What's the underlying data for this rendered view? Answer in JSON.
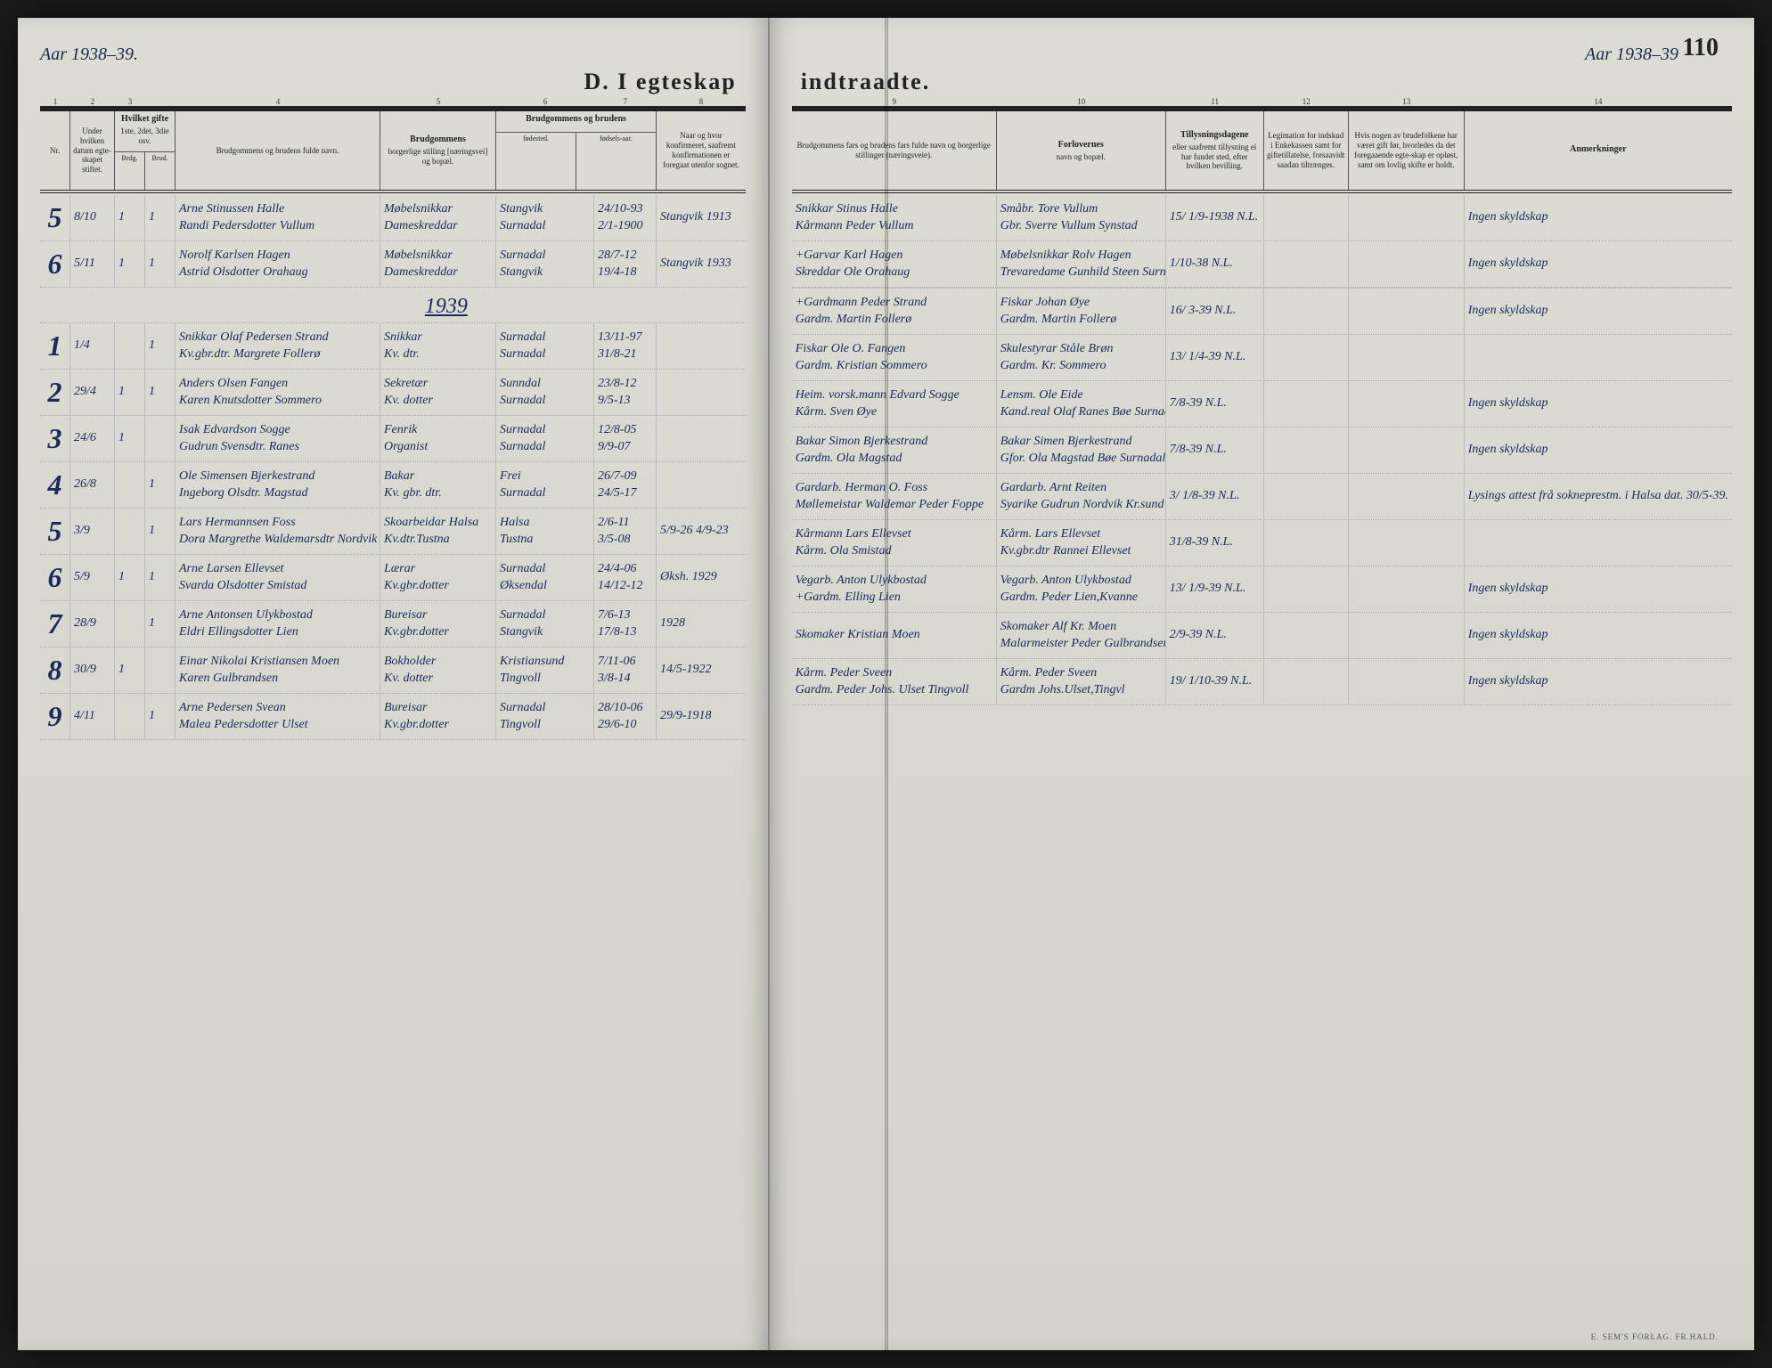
{
  "page_number": "110",
  "year_left": "Aar 1938–39.",
  "year_right": "Aar 1938–39",
  "title_left": "D.  I egteskap",
  "title_right": "indtraadte.",
  "year_divider": "1939",
  "footer": "E. SEM'S FORLAG. FR.HALD.",
  "left_headers": {
    "c1": "Nr.",
    "c2": "Under hvilken datum egte-skapet stiftet.",
    "c3_title": "Hvilket gifte",
    "c3_sub": "1ste, 2det, 3die osv.",
    "c3a": "Brdg.",
    "c3b": "Brud.",
    "c5": "Brudgommens og brudens fulde navn.",
    "c6_title": "Brudgommens",
    "c6_sub": "borgerlige stilling [næringsvei] og bopæl.",
    "c7_title": "Brudgommens og brudens",
    "c7a": "fødested.",
    "c7b": "fødsels-aar.",
    "c9": "Naar og hvor konfirmeret, saafremt konfirmationen er foregaat utenfor sognet."
  },
  "right_headers": {
    "c1": "Brudgommens fars og brudens fars fulde navn og borgerlige stillinger (næringsveie).",
    "c2_title": "Forlovernes",
    "c2_sub": "navn og bopæl.",
    "c3_title": "Tillysningsdagene",
    "c3_sub": "eller saafremt tillysning ei har fundet sted, efter hvilken bevilling.",
    "c4": "Legimation for indskud i Enkekassen samt for giftetillatelse, forsaavidt saadan tiltrænges.",
    "c5": "Hvis nogen av brudefolkene har været gift før, hvorledes da det foregaaende egte-skap er opløst, samt om lovlig skifte er holdt.",
    "c6_title": "Anmerkninger"
  },
  "col_nums_left": [
    "1",
    "2",
    "3",
    "",
    "4",
    "5",
    "6",
    "7",
    "8"
  ],
  "col_nums_right": [
    "9",
    "10",
    "11",
    "12",
    "13",
    "14"
  ],
  "entries": [
    {
      "nr": "5",
      "date": "8/10",
      "g1": "1",
      "g2": "1",
      "names": [
        "Arne Stinussen Halle",
        "Randi Pedersdotter Vullum"
      ],
      "occ": [
        "Møbelsnikkar",
        "Dameskreddar"
      ],
      "born": [
        "Stangvik",
        "Surnadal"
      ],
      "byr": [
        "24/10-93",
        "2/1-1900"
      ],
      "conf": "Stangvik 1913",
      "fathers": [
        "Snikkar Stinus Halle",
        "Kårmann Peder Vullum"
      ],
      "forlov": [
        "Småbr. Tore Vullum",
        "Gbr. Sverre Vullum Synstad"
      ],
      "till": "15/ 1/9-1938 N.L.",
      "anm": "Ingen skyldskap"
    },
    {
      "nr": "6",
      "date": "5/11",
      "g1": "1",
      "g2": "1",
      "names": [
        "Norolf Karlsen Hagen",
        "Astrid Olsdotter Orahaug"
      ],
      "occ": [
        "Møbelsnikkar",
        "Dameskreddar"
      ],
      "born": [
        "Surnadal",
        "Stangvik"
      ],
      "byr": [
        "28/7-12",
        "19/4-18"
      ],
      "conf": "Stangvik 1933",
      "fathers": [
        "+Garvar Karl Hagen",
        "Skreddar Ole Orahaug"
      ],
      "forlov": [
        "Møbelsnikkar Rolv Hagen",
        "Trevaredame Gunhild Steen Surnadal"
      ],
      "till": "1/10-38 N.L.",
      "anm": "Ingen skyldskap"
    },
    {
      "nr": "1",
      "date": "1/4",
      "g1": "",
      "g2": "1",
      "names": [
        "Snikkar Olaf Pedersen Strand",
        "Kv.gbr.dtr. Margrete Follerø"
      ],
      "occ": [
        "Snikkar",
        "Kv. dtr."
      ],
      "born": [
        "Surnadal",
        "Surnadal"
      ],
      "byr": [
        "13/11-97",
        "31/8-21"
      ],
      "conf": "",
      "fathers": [
        "+Gardmann Peder Strand",
        "Gardm. Martin Follerø"
      ],
      "forlov": [
        "Fiskar Johan Øye",
        "Gardm. Martin Follerø"
      ],
      "till": "16/ 3-39 N.L.",
      "anm": "Ingen skyldskap"
    },
    {
      "nr": "2",
      "date": "29/4",
      "g1": "1",
      "g2": "1",
      "names": [
        "Anders Olsen Fangen",
        "Karen Knutsdotter Sommero"
      ],
      "occ": [
        "Sekretær",
        "Kv. dotter"
      ],
      "born": [
        "Sunndal",
        "Surnadal"
      ],
      "byr": [
        "23/8-12",
        "9/5-13"
      ],
      "conf": "",
      "fathers": [
        "Fiskar Ole O. Fangen",
        "Gardm. Kristian Sommero"
      ],
      "forlov": [
        "Skulestyrar Ståle Brøn",
        "Gardm. Kr. Sommero"
      ],
      "till": "13/ 1/4-39 N.L.",
      "anm": ""
    },
    {
      "nr": "3",
      "date": "24/6",
      "g1": "1",
      "g2": "",
      "names": [
        "Isak Edvardson Sogge",
        "Gudrun Svensdtr. Ranes"
      ],
      "occ": [
        "Fenrik",
        "Organist"
      ],
      "born": [
        "Surnadal",
        "Surnadal"
      ],
      "byr": [
        "12/8-05",
        "9/9-07"
      ],
      "conf": "",
      "fathers": [
        "Heim. vorsk.mann Edvard Sogge",
        "Kårm. Sven Øye"
      ],
      "forlov": [
        "Lensm. Ole Eide",
        "Kand.real Olaf Ranes Bøe Surnadal"
      ],
      "till": "7/8-39 N.L.",
      "anm": "Ingen skyldskap"
    },
    {
      "nr": "4",
      "date": "26/8",
      "g1": "",
      "g2": "1",
      "names": [
        "Ole Simensen Bjerkestrand",
        "Ingeborg Olsdtr. Magstad"
      ],
      "occ": [
        "Bakar",
        "Kv. gbr. dtr."
      ],
      "born": [
        "Frei",
        "Surnadal"
      ],
      "byr": [
        "26/7-09",
        "24/5-17"
      ],
      "conf": "",
      "fathers": [
        "Bakar Simon Bjerkestrand",
        "Gardm. Ola Magstad"
      ],
      "forlov": [
        "Bakar Simen Bjerkestrand",
        "Gfor. Ola Magstad Bøe Surnadal"
      ],
      "till": "7/8-39 N.L.",
      "anm": "Ingen skyldskap"
    },
    {
      "nr": "5",
      "date": "3/9",
      "g1": "",
      "g2": "1",
      "names": [
        "Lars Hermannsen Foss",
        "Dora Margrethe Waldemarsdtr Nordvik"
      ],
      "occ": [
        "Skoarbeidar Halsa",
        "Kv.dtr.Tustna"
      ],
      "born": [
        "Halsa",
        "Tustna"
      ],
      "byr": [
        "2/6-11",
        "3/5-08"
      ],
      "conf": "5/9-26  4/9-23",
      "fathers": [
        "Gardarb. Herman O. Foss",
        "Møllemeistar Waldemar Peder Foppe"
      ],
      "forlov": [
        "Gardarb. Arnt Reiten",
        "Syarike Gudrun Nordvik Kr.sund"
      ],
      "till": "3/ 1/8-39 N.L.",
      "anm": "Lysings attest frå sokneprestm. i Halsa dat. 30/5-39."
    },
    {
      "nr": "6",
      "date": "5/9",
      "g1": "1",
      "g2": "1",
      "names": [
        "Arne Larsen Ellevset",
        "Svarda Olsdotter Smistad"
      ],
      "occ": [
        "Lærar",
        "Kv.gbr.dotter"
      ],
      "born": [
        "Surnadal",
        "Øksendal"
      ],
      "byr": [
        "24/4-06",
        "14/12-12"
      ],
      "conf": "Øksh. 1929",
      "fathers": [
        "Kårmann Lars Ellevset",
        "Kårm. Ola Smistad"
      ],
      "forlov": [
        "Kårm. Lars Ellevset",
        "Kv.gbr.dtr Rannei Ellevset"
      ],
      "till": "31/8-39 N.L.",
      "anm": ""
    },
    {
      "nr": "7",
      "date": "28/9",
      "g1": "",
      "g2": "1",
      "names": [
        "Arne Antonsen Ulykbostad",
        "Eldri Ellingsdotter Lien"
      ],
      "occ": [
        "Bureisar",
        "Kv.gbr.dotter"
      ],
      "born": [
        "Surnadal",
        "Stangvik"
      ],
      "byr": [
        "7/6-13",
        "17/8-13"
      ],
      "conf": "1928",
      "fathers": [
        "Vegarb. Anton Ulykbostad",
        "+Gardm. Elling Lien"
      ],
      "forlov": [
        "Vegarb. Anton Ulykbostad",
        "Gardm. Peder Lien,Kvanne"
      ],
      "till": "13/ 1/9-39 N.L.",
      "anm": "Ingen skyldskap"
    },
    {
      "nr": "8",
      "date": "30/9",
      "g1": "1",
      "g2": "",
      "names": [
        "Einar Nikolai Kristiansen Moen",
        "Karen Gulbrandsen"
      ],
      "occ": [
        "Bokholder",
        "Kv. dotter"
      ],
      "born": [
        "Kristiansund",
        "Tingvoll"
      ],
      "byr": [
        "7/11-06",
        "3/8-14"
      ],
      "conf": "14/5-1922",
      "fathers": [
        "Skomaker Kristian Moen",
        ""
      ],
      "forlov": [
        "Skomaker Alf Kr. Moen",
        "Malarmeister Peder Gulbrandsen  Husmor Olga Moen"
      ],
      "till": "2/9-39 N.L.",
      "anm": "Ingen skyldskap"
    },
    {
      "nr": "9",
      "date": "4/11",
      "g1": "",
      "g2": "1",
      "names": [
        "Arne Pedersen Svean",
        "Malea Pedersdotter Ulset"
      ],
      "occ": [
        "Bureisar",
        "Kv.gbr.dotter"
      ],
      "born": [
        "Surnadal",
        "Tingvoll"
      ],
      "byr": [
        "28/10-06",
        "29/6-10"
      ],
      "conf": "29/9-1918",
      "fathers": [
        "Kårm. Peder Sveen",
        "Gardm. Peder Johs. Ulset Tingvoll"
      ],
      "forlov": [
        "Kårm. Peder Sveen",
        "Gardm Johs.Ulset,Tingvl"
      ],
      "till": "19/ 1/10-39 N.L.",
      "anm": "Ingen skyldskap"
    }
  ]
}
